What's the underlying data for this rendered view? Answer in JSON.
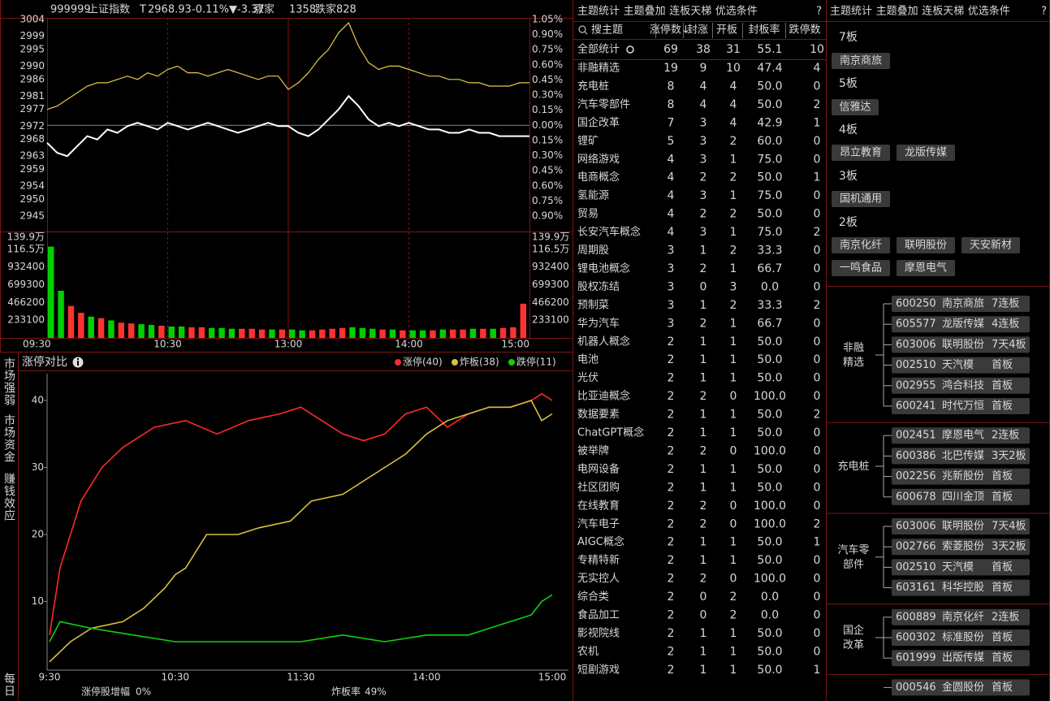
{
  "quote": {
    "code": "999999",
    "name": "上证指数",
    "t": "T",
    "price": "2968.93",
    "pct": "-0.11%",
    "chg": "▼-3.37",
    "up_label": "涨家",
    "up": "1358",
    "down_label": "跌家",
    "down": "828"
  },
  "intraday": {
    "type": "line",
    "x": [
      0,
      5,
      10,
      15,
      20,
      25,
      30,
      35,
      40,
      45,
      50,
      55,
      60,
      65,
      70,
      75,
      80,
      85,
      90,
      95,
      100,
      105,
      110,
      115,
      120,
      125,
      130,
      135,
      140,
      145,
      150,
      155,
      160,
      165,
      170,
      175,
      180,
      185,
      190,
      195,
      200,
      205,
      210,
      215,
      220,
      225,
      230,
      235,
      240
    ],
    "xlim": [
      0,
      240
    ],
    "xticks": [
      {
        "value": 0,
        "label": "09:30"
      },
      {
        "value": 60,
        "label": "10:30"
      },
      {
        "value": 120,
        "label": "13:00"
      },
      {
        "value": 180,
        "label": "14:00"
      },
      {
        "value": 240,
        "label": "15:00"
      }
    ],
    "series": [
      {
        "color": "#ffffff",
        "values": [
          2967,
          2964,
          2963,
          2966,
          2969,
          2968,
          2971,
          2970,
          2972,
          2973,
          2972,
          2971,
          2973,
          2972,
          2971,
          2972,
          2973,
          2972,
          2971,
          2970,
          2971,
          2972,
          2973,
          2972,
          2972,
          2970,
          2969,
          2971,
          2974,
          2977,
          2981,
          2978,
          2974,
          2972,
          2973,
          2972,
          2973,
          2972,
          2971,
          2971,
          2970,
          2970,
          2971,
          2970,
          2970,
          2969,
          2969,
          2969,
          2969
        ]
      },
      {
        "color": "#e8c84a",
        "values": [
          2977,
          2978,
          2980,
          2982,
          2984,
          2985,
          2985,
          2986,
          2987,
          2986,
          2988,
          2987,
          2989,
          2990,
          2988,
          2988,
          2987,
          2988,
          2989,
          2988,
          2987,
          2986,
          2987,
          2987,
          2983,
          2985,
          2988,
          2992,
          2995,
          3000,
          3003,
          2996,
          2991,
          2989,
          2990,
          2990,
          2989,
          2988,
          2987,
          2987,
          2986,
          2986,
          2985,
          2985,
          2984,
          2984,
          2984,
          2985,
          2985
        ]
      }
    ],
    "ylim": [
      2945,
      3004
    ],
    "yticks": [
      3004,
      2999,
      2995,
      2990,
      2986,
      2981,
      2977,
      2972,
      2968,
      2963,
      2959,
      2954,
      2950,
      2945
    ],
    "y2lim": [
      -0.9,
      1.05
    ],
    "y2ticks": [
      {
        "value": 1.05,
        "label": "1.05%"
      },
      {
        "value": 0.9,
        "label": "0.90%"
      },
      {
        "value": 0.75,
        "label": "0.75%"
      },
      {
        "value": 0.6,
        "label": "0.60%"
      },
      {
        "value": 0.45,
        "label": "0.45%"
      },
      {
        "value": 0.3,
        "label": "0.30%"
      },
      {
        "value": 0.15,
        "label": "0.15%"
      },
      {
        "value": 0,
        "label": "0.00%"
      },
      {
        "value": -0.15,
        "label": "0.15%"
      },
      {
        "value": -0.3,
        "label": "0.30%"
      },
      {
        "value": -0.45,
        "label": "0.45%"
      },
      {
        "value": -0.6,
        "label": "0.60%"
      },
      {
        "value": -0.75,
        "label": "0.75%"
      },
      {
        "value": -0.9,
        "label": "0.90%"
      }
    ],
    "up_color": "#ff3232",
    "down_color": "#00d000",
    "volume": {
      "values": [
        1200000,
        620000,
        420000,
        330000,
        280000,
        260000,
        230000,
        200000,
        190000,
        180000,
        170000,
        160000,
        150000,
        150000,
        140000,
        140000,
        130000,
        130000,
        120000,
        120000,
        120000,
        110000,
        110000,
        110000,
        110000,
        100000,
        100000,
        110000,
        120000,
        130000,
        140000,
        130000,
        120000,
        110000,
        110000,
        100000,
        100000,
        100000,
        100000,
        110000,
        110000,
        110000,
        120000,
        120000,
        120000,
        130000,
        140000,
        450000
      ],
      "ylim": [
        0,
        1399000
      ],
      "yticks": [
        {
          "value": 1399000,
          "label": "139.9万"
        },
        {
          "value": 1165000,
          "label": "116.5万"
        },
        932400,
        699300,
        466200,
        233100
      ]
    }
  },
  "limit": {
    "type": "line",
    "title": "涨停对比",
    "xlim": [
      0,
      240
    ],
    "xticks": [
      {
        "value": 0,
        "label": "9:30"
      },
      {
        "value": 60,
        "label": "10:30"
      },
      {
        "value": 120,
        "label": "11:30"
      },
      {
        "value": 180,
        "label": "14:00"
      },
      {
        "value": 240,
        "label": "15:00"
      }
    ],
    "ylim": [
      0,
      44
    ],
    "yticks": [
      10,
      20,
      30,
      40
    ],
    "series": [
      {
        "name": "涨停(40)",
        "color": "#ff2a2a",
        "x": [
          0,
          5,
          15,
          25,
          35,
          50,
          65,
          80,
          95,
          110,
          120,
          130,
          140,
          150,
          160,
          170,
          180,
          190,
          200,
          210,
          220,
          230,
          235,
          240
        ],
        "values": [
          5,
          15,
          25,
          30,
          33,
          36,
          37,
          35,
          37,
          38,
          39,
          37,
          35,
          34,
          35,
          38,
          39,
          36,
          38,
          39,
          39,
          40,
          41,
          40
        ]
      },
      {
        "name": "炸板(38)",
        "color": "#d9c040",
        "x": [
          0,
          10,
          20,
          35,
          45,
          55,
          60,
          65,
          75,
          90,
          100,
          115,
          125,
          140,
          150,
          160,
          170,
          180,
          190,
          200,
          210,
          220,
          230,
          235,
          240
        ],
        "values": [
          1,
          4,
          6,
          7,
          9,
          12,
          14,
          15,
          20,
          20,
          21,
          22,
          25,
          26,
          28,
          30,
          32,
          35,
          37,
          38,
          39,
          39,
          40,
          37,
          38
        ]
      },
      {
        "name": "跌停(11)",
        "color": "#10d010",
        "x": [
          0,
          5,
          20,
          40,
          60,
          80,
          100,
          120,
          140,
          160,
          180,
          200,
          210,
          220,
          230,
          235,
          240
        ],
        "values": [
          4,
          7,
          6,
          5,
          4,
          4,
          4,
          4,
          5,
          4,
          5,
          5,
          6,
          7,
          8,
          10,
          11
        ]
      }
    ],
    "footer": [
      {
        "label": "涨停股增幅",
        "value": "0%"
      },
      {
        "label": "炸板率",
        "value": "49%"
      }
    ]
  },
  "side_tabs": {
    "items": [
      "市场强弱",
      "市场资金",
      "赚钱效应",
      "每日"
    ],
    "active": 2
  },
  "theme_table": {
    "tabs": [
      "主题统计",
      "主题叠加",
      "连板天梯",
      "优选条件"
    ],
    "active": 0,
    "help": "?",
    "search": "搜主题",
    "columns": [
      "涨停数↓",
      "封涨",
      "开板",
      "封板率",
      "跌停数"
    ],
    "rows": [
      [
        "全部统计",
        "69",
        "38",
        "31",
        "55.1",
        "10"
      ],
      [
        "非融精选",
        "19",
        "9",
        "10",
        "47.4",
        "4"
      ],
      [
        "充电桩",
        "8",
        "4",
        "4",
        "50.0",
        "0"
      ],
      [
        "汽车零部件",
        "8",
        "4",
        "4",
        "50.0",
        "2"
      ],
      [
        "国企改革",
        "7",
        "3",
        "4",
        "42.9",
        "1"
      ],
      [
        "锂矿",
        "5",
        "3",
        "2",
        "60.0",
        "0"
      ],
      [
        "网络游戏",
        "4",
        "3",
        "1",
        "75.0",
        "0"
      ],
      [
        "电商概念",
        "4",
        "2",
        "2",
        "50.0",
        "1"
      ],
      [
        "氢能源",
        "4",
        "3",
        "1",
        "75.0",
        "0"
      ],
      [
        "贸易",
        "4",
        "2",
        "2",
        "50.0",
        "0"
      ],
      [
        "长安汽车概念",
        "4",
        "3",
        "1",
        "75.0",
        "2"
      ],
      [
        "周期股",
        "3",
        "1",
        "2",
        "33.3",
        "0"
      ],
      [
        "锂电池概念",
        "3",
        "2",
        "1",
        "66.7",
        "0"
      ],
      [
        "股权冻结",
        "3",
        "0",
        "3",
        "0.0",
        "0"
      ],
      [
        "预制菜",
        "3",
        "1",
        "2",
        "33.3",
        "2"
      ],
      [
        "华为汽车",
        "3",
        "2",
        "1",
        "66.7",
        "0"
      ],
      [
        "机器人概念",
        "2",
        "1",
        "1",
        "50.0",
        "0"
      ],
      [
        "电池",
        "2",
        "1",
        "1",
        "50.0",
        "0"
      ],
      [
        "光伏",
        "2",
        "1",
        "1",
        "50.0",
        "0"
      ],
      [
        "比亚迪概念",
        "2",
        "2",
        "0",
        "100.0",
        "0"
      ],
      [
        "数据要素",
        "2",
        "1",
        "1",
        "50.0",
        "2"
      ],
      [
        "ChatGPT概念",
        "2",
        "1",
        "1",
        "50.0",
        "0"
      ],
      [
        "被举牌",
        "2",
        "2",
        "0",
        "100.0",
        "0"
      ],
      [
        "电网设备",
        "2",
        "1",
        "1",
        "50.0",
        "0"
      ],
      [
        "社区团购",
        "2",
        "1",
        "1",
        "50.0",
        "0"
      ],
      [
        "在线教育",
        "2",
        "2",
        "0",
        "100.0",
        "0"
      ],
      [
        "汽车电子",
        "2",
        "2",
        "0",
        "100.0",
        "2"
      ],
      [
        "AIGC概念",
        "2",
        "1",
        "1",
        "50.0",
        "1"
      ],
      [
        "专精特新",
        "2",
        "1",
        "1",
        "50.0",
        "0"
      ],
      [
        "无实控人",
        "2",
        "2",
        "0",
        "100.0",
        "0"
      ],
      [
        "综合类",
        "2",
        "0",
        "2",
        "0.0",
        "0"
      ],
      [
        "食品加工",
        "2",
        "0",
        "2",
        "0.0",
        "0"
      ],
      [
        "影视院线",
        "2",
        "1",
        "1",
        "50.0",
        "0"
      ],
      [
        "农机",
        "2",
        "1",
        "1",
        "50.0",
        "0"
      ],
      [
        "短剧游戏",
        "2",
        "1",
        "1",
        "50.0",
        "1"
      ]
    ]
  },
  "ladder": {
    "tabs": [
      "主题统计",
      "主题叠加",
      "连板天梯",
      "优选条件"
    ],
    "active": 2,
    "help": "?",
    "levels": [
      {
        "label": "7板",
        "stocks": [
          "南京商旅"
        ]
      },
      {
        "label": "5板",
        "stocks": [
          "信雅达"
        ]
      },
      {
        "label": "4板",
        "stocks": [
          "昂立教育",
          "龙版传媒"
        ]
      },
      {
        "label": "3板",
        "stocks": [
          "国机通用"
        ]
      },
      {
        "label": "2板",
        "stocks": [
          "南京化纤",
          "联明股份",
          "天安新材",
          "一鸣食品",
          "摩恩电气"
        ]
      }
    ],
    "groups": [
      {
        "name": "非融精选",
        "items": [
          {
            "code": "600250",
            "name": "南京商旅",
            "tag": "7连板",
            "color": "#ffb400"
          },
          {
            "code": "605577",
            "name": "龙版传媒",
            "tag": "4连板"
          },
          {
            "code": "603006",
            "name": "联明股份",
            "tag": "7天4板"
          },
          {
            "code": "002510",
            "name": "天汽模",
            "tag": "首板",
            "color": "#ffb400"
          },
          {
            "code": "002955",
            "name": "鸿合科技",
            "tag": "首板"
          },
          {
            "code": "600241",
            "name": "时代万恒",
            "tag": "首板"
          }
        ]
      },
      {
        "name": "充电桩",
        "items": [
          {
            "code": "002451",
            "name": "摩恩电气",
            "tag": "2连板",
            "color": "#ffb400"
          },
          {
            "code": "600386",
            "name": "北巴传媒",
            "tag": "3天2板"
          },
          {
            "code": "002256",
            "name": "兆新股份",
            "tag": "首板"
          },
          {
            "code": "600678",
            "name": "四川金顶",
            "tag": "首板"
          }
        ]
      },
      {
        "name": "汽车零部件",
        "items": [
          {
            "code": "603006",
            "name": "联明股份",
            "tag": "7天4板"
          },
          {
            "code": "002766",
            "name": "索菱股份",
            "tag": "3天2板"
          },
          {
            "code": "002510",
            "name": "天汽模",
            "tag": "首板",
            "color": "#ffb400"
          },
          {
            "code": "603161",
            "name": "科华控股",
            "tag": "首板"
          }
        ]
      },
      {
        "name": "国企改革",
        "items": [
          {
            "code": "600889",
            "name": "南京化纤",
            "tag": "2连板"
          },
          {
            "code": "600302",
            "name": "标准股份",
            "tag": "首板"
          },
          {
            "code": "601999",
            "name": "出版传媒",
            "tag": "首板"
          }
        ]
      },
      {
        "items": [
          {
            "code": "000546",
            "name": "金圆股份",
            "tag": "首板"
          }
        ]
      }
    ]
  }
}
